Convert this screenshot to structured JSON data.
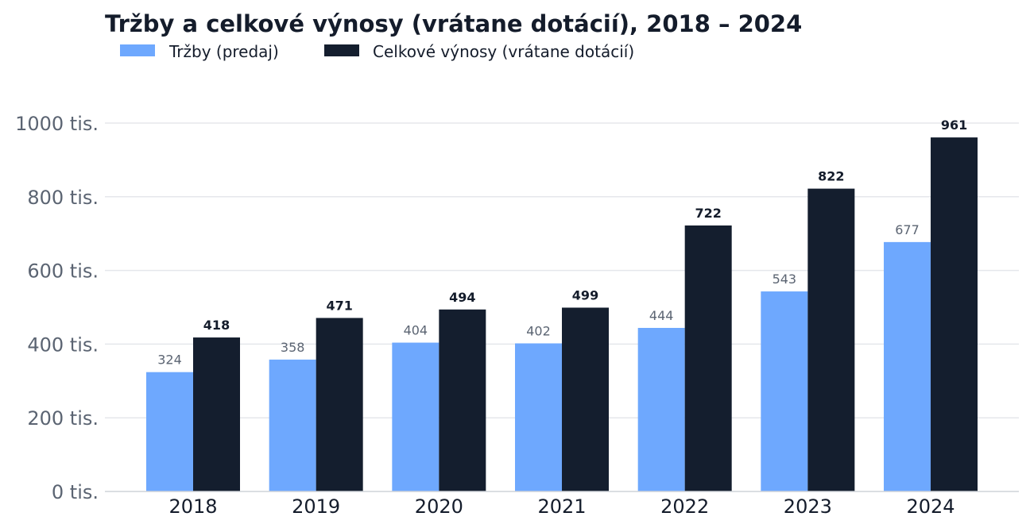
{
  "chart_data": {
    "type": "bar",
    "title": "Tržby a celkové výnosy (vrátane dotácií), 2018 – 2024",
    "categories": [
      "2018",
      "2019",
      "2020",
      "2021",
      "2022",
      "2023",
      "2024"
    ],
    "series": [
      {
        "name": "Tržby (predaj)",
        "color": "#6ea8fe",
        "values": [
          324,
          358,
          404,
          402,
          444,
          543,
          677
        ]
      },
      {
        "name": "Celkové výnosy (vrátane dotácií)",
        "color": "#141e2e",
        "values": [
          418,
          471,
          494,
          499,
          722,
          822,
          961
        ]
      }
    ],
    "value_unit": "tis.",
    "yticks": [
      0,
      200,
      400,
      600,
      800,
      1000
    ],
    "ytick_labels": [
      "0 tis.",
      "200 tis.",
      "400 tis.",
      "600 tis.",
      "800 tis.",
      "1000 tis."
    ],
    "ylim": [
      0,
      1000
    ],
    "xlabel": "",
    "ylabel": "",
    "grid": true,
    "legend_position": "top-left"
  }
}
